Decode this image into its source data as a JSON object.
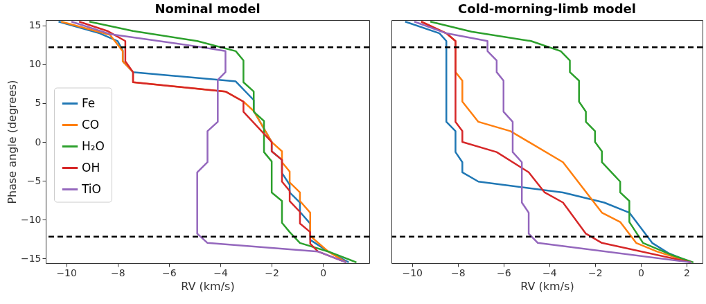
{
  "chart_data": [
    {
      "type": "line",
      "title": "Nominal model",
      "xlabel": "RV (km/s)",
      "ylabel": "Phase angle (degrees)",
      "xlim": [
        -10.8,
        1.8
      ],
      "xticks": [
        -10,
        -8,
        -6,
        -4,
        -2,
        0
      ],
      "ylim": [
        -15.6,
        15.7
      ],
      "yticks": [
        -15,
        -10,
        -5,
        0,
        5,
        10,
        15
      ],
      "legend": "center left",
      "ref_lines": [
        {
          "axis": "y",
          "value": 12.2,
          "color": "#000000",
          "line_style": "dashed"
        },
        {
          "axis": "y",
          "value": -12.2,
          "color": "#000000",
          "line_style": "dashed"
        }
      ],
      "series": [
        {
          "name": "Fe",
          "color": "#1f77b4",
          "x": [
            -10.3,
            -8.7,
            -8.0,
            -7.8,
            -7.8,
            -7.4,
            -3.4,
            -2.7,
            -2.7,
            -2.0,
            -2.0,
            -1.6,
            -1.6,
            -1.3,
            -1.3,
            -0.9,
            -0.9,
            -0.5,
            -0.5,
            0.2,
            1.0
          ],
          "values": [
            15.5,
            14.0,
            13.0,
            11.8,
            10.4,
            9.0,
            7.8,
            5.4,
            4.0,
            0.0,
            -1.2,
            -2.3,
            -4.0,
            -5.5,
            -6.5,
            -7.8,
            -9.0,
            -10.5,
            -12.6,
            -14.1,
            -15.5
          ]
        },
        {
          "name": "CO",
          "color": "#ff7f0e",
          "x": [
            -10.2,
            -8.3,
            -7.8,
            -7.8,
            -7.4,
            -7.4,
            -3.8,
            -3.1,
            -2.7,
            -2.0,
            -1.6,
            -1.6,
            -1.3,
            -1.3,
            -0.9,
            -0.9,
            -0.5,
            -0.5,
            0.2,
            0.9
          ],
          "values": [
            15.5,
            13.8,
            11.7,
            10.4,
            9.0,
            7.7,
            6.5,
            5.2,
            4.0,
            0.0,
            -1.2,
            -2.6,
            -3.8,
            -5.2,
            -6.5,
            -7.6,
            -9.1,
            -12.1,
            -14.1,
            -15.5
          ]
        },
        {
          "name": "H₂O",
          "color": "#2ca02c",
          "x": [
            -9.1,
            -7.4,
            -4.9,
            -3.4,
            -3.1,
            -3.1,
            -2.7,
            -2.7,
            -2.3,
            -2.3,
            -2.0,
            -2.0,
            -1.6,
            -1.6,
            -1.3,
            -0.9,
            0.2,
            1.3
          ],
          "values": [
            15.5,
            14.3,
            13.0,
            11.7,
            10.5,
            7.7,
            6.5,
            3.9,
            2.7,
            -1.3,
            -2.5,
            -6.5,
            -7.6,
            -10.4,
            -11.6,
            -13.0,
            -14.1,
            -15.5
          ]
        },
        {
          "name": "OH",
          "color": "#d62728",
          "x": [
            -9.5,
            -8.4,
            -7.7,
            -7.7,
            -7.4,
            -7.4,
            -3.8,
            -3.1,
            -3.1,
            -2.0,
            -2.0,
            -1.6,
            -1.6,
            -1.3,
            -1.3,
            -0.9,
            -0.9,
            -0.5,
            -0.5,
            -0.2,
            0.9
          ],
          "values": [
            15.5,
            14.3,
            13.0,
            10.4,
            9.0,
            7.7,
            6.5,
            5.2,
            3.9,
            0.0,
            -1.2,
            -2.3,
            -5.1,
            -6.3,
            -7.6,
            -9.0,
            -10.5,
            -11.6,
            -13.1,
            -14.1,
            -15.5
          ]
        },
        {
          "name": "TiO",
          "color": "#9467bd",
          "x": [
            -9.8,
            -8.3,
            -4.9,
            -3.8,
            -3.8,
            -4.1,
            -4.1,
            -4.5,
            -4.5,
            -4.9,
            -4.9,
            -4.5,
            -0.2,
            0.9
          ],
          "values": [
            15.5,
            13.9,
            12.3,
            11.7,
            9.0,
            8.0,
            2.6,
            1.4,
            -2.6,
            -3.9,
            -11.8,
            -13.0,
            -14.1,
            -15.5
          ]
        }
      ]
    },
    {
      "type": "line",
      "title": "Cold-morning-limb model",
      "xlabel": "RV (km/s)",
      "xlim": [
        -10.9,
        2.7
      ],
      "xticks": [
        -10,
        -8,
        -6,
        -4,
        -2,
        0,
        2
      ],
      "ylim": [
        -15.6,
        15.7
      ],
      "tick_labels": "x",
      "ref_lines": [
        {
          "axis": "y",
          "value": 12.2,
          "color": "#000000",
          "line_style": "dashed"
        },
        {
          "axis": "y",
          "value": -12.2,
          "color": "#000000",
          "line_style": "dashed"
        }
      ],
      "series": [
        {
          "color": "#1f77b4",
          "x": [
            -10.3,
            -8.8,
            -8.5,
            -8.5,
            -8.1,
            -8.1,
            -7.8,
            -7.8,
            -7.1,
            -3.4,
            -1.6,
            -0.5,
            0.5,
            1.2,
            2.2
          ],
          "values": [
            15.5,
            14.0,
            13.0,
            2.6,
            1.4,
            -1.3,
            -2.6,
            -3.9,
            -5.1,
            -6.5,
            -7.8,
            -9.1,
            -13.0,
            -14.3,
            -15.5
          ]
        },
        {
          "color": "#ff7f0e",
          "x": [
            -9.6,
            -8.5,
            -8.1,
            -8.1,
            -7.8,
            -7.8,
            -7.1,
            -5.7,
            -3.4,
            -1.7,
            -0.9,
            -0.2,
            0.7,
            2.2
          ],
          "values": [
            15.5,
            14.0,
            13.0,
            9.0,
            7.9,
            5.2,
            2.6,
            1.4,
            -2.6,
            -9.1,
            -10.3,
            -13.0,
            -14.1,
            -15.5
          ]
        },
        {
          "color": "#2ca02c",
          "x": [
            -9.2,
            -7.4,
            -4.8,
            -3.5,
            -3.1,
            -3.1,
            -2.7,
            -2.7,
            -2.4,
            -2.4,
            -2.0,
            -2.0,
            -1.7,
            -1.7,
            -0.9,
            -0.9,
            -0.5,
            -0.5,
            0.1,
            1.4,
            2.3
          ],
          "values": [
            15.5,
            14.2,
            13.0,
            11.7,
            10.5,
            9.0,
            7.9,
            5.2,
            3.9,
            2.6,
            1.4,
            0.0,
            -1.2,
            -2.6,
            -5.1,
            -6.5,
            -7.6,
            -10.3,
            -13.0,
            -14.6,
            -15.5
          ]
        },
        {
          "color": "#d62728",
          "x": [
            -9.6,
            -8.5,
            -8.1,
            -8.1,
            -7.8,
            -7.8,
            -6.3,
            -4.9,
            -4.2,
            -3.4,
            -2.4,
            -1.7,
            2.2
          ],
          "values": [
            15.5,
            14.0,
            13.0,
            2.6,
            1.4,
            0.0,
            -1.3,
            -3.9,
            -6.5,
            -7.8,
            -11.8,
            -13.0,
            -15.5
          ]
        },
        {
          "color": "#9467bd",
          "x": [
            -9.9,
            -8.5,
            -6.7,
            -6.7,
            -6.3,
            -6.3,
            -6.0,
            -6.0,
            -5.6,
            -5.6,
            -5.2,
            -5.2,
            -4.9,
            -4.9,
            -4.5,
            2.2
          ],
          "values": [
            15.5,
            14.0,
            13.0,
            11.7,
            10.5,
            9.0,
            7.9,
            3.9,
            2.6,
            -1.3,
            -2.6,
            -7.8,
            -9.1,
            -11.8,
            -13.0,
            -15.5
          ]
        }
      ]
    }
  ]
}
